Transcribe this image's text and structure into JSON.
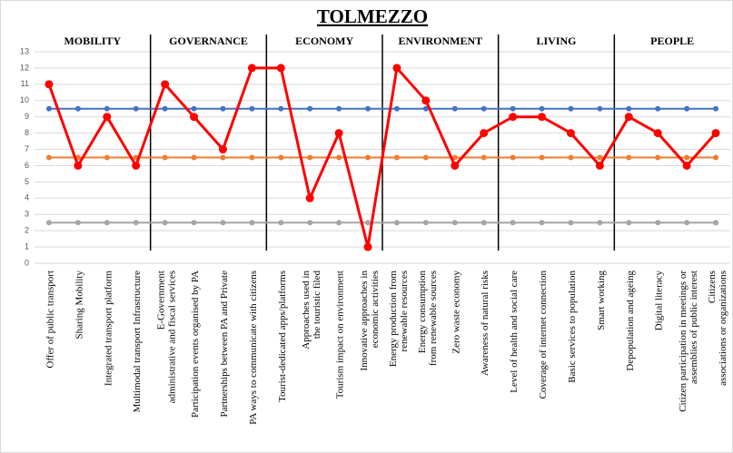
{
  "chart_data": {
    "type": "line",
    "title": "TOLMEZZO",
    "categories": [
      "Offer of public transport",
      "Sharing Mobility",
      "Integrated transport platform",
      "Multimodal transport Infrastructure",
      "E-Government administrative and fiscal services",
      "Participation events organised by PA",
      "Partnerships between PA and Private",
      "PA ways to communicate with citizens",
      "Tourist-dedicated apps/platforms",
      "Approaches used in the touristic filed",
      "Tourism impact on environment",
      "Innovative approaches in economic activities",
      "Energy production from renewable resources",
      "Energy consumption from renewable sources",
      "Zero waste economy",
      "Awareness of natural risks",
      "Level of health and social care",
      "Coverage of internet connection",
      "Basic services to population",
      "Smart working",
      "Depopulation and ageing",
      "Digital literacy",
      "Citizen participation in meetings or assemblies of public interest",
      "Citizens associations or organizations"
    ],
    "groups": [
      {
        "label": "MOBILITY",
        "categories": 4
      },
      {
        "label": "GOVERNANCE",
        "categories": 4
      },
      {
        "label": "ECONOMY",
        "categories": 4
      },
      {
        "label": "ENVIRONMENT",
        "categories": 4
      },
      {
        "label": "LIVING",
        "categories": 4
      },
      {
        "label": "PEOPLE",
        "categories": 4
      }
    ],
    "series": [
      {
        "color": "#4472c4",
        "values": [
          9.5,
          9.5,
          9.5,
          9.5,
          9.5,
          9.5,
          9.5,
          9.5,
          9.5,
          9.5,
          9.5,
          9.5,
          9.5,
          9.5,
          9.5,
          9.5,
          9.5,
          9.5,
          9.5,
          9.5,
          9.5,
          9.5,
          9.5,
          9.5
        ]
      },
      {
        "color": "#ed7d31",
        "values": [
          6.5,
          6.5,
          6.5,
          6.5,
          6.5,
          6.5,
          6.5,
          6.5,
          6.5,
          6.5,
          6.5,
          6.5,
          6.5,
          6.5,
          6.5,
          6.5,
          6.5,
          6.5,
          6.5,
          6.5,
          6.5,
          6.5,
          6.5,
          6.5
        ]
      },
      {
        "color": "#a5a5a5",
        "values": [
          2.5,
          2.5,
          2.5,
          2.5,
          2.5,
          2.5,
          2.5,
          2.5,
          2.5,
          2.5,
          2.5,
          2.5,
          2.5,
          2.5,
          2.5,
          2.5,
          2.5,
          2.5,
          2.5,
          2.5,
          2.5,
          2.5,
          2.5,
          2.5
        ]
      },
      {
        "color": "#ff0000",
        "values": [
          11,
          6,
          9,
          6,
          11,
          9,
          7,
          12,
          12,
          4,
          8,
          1,
          12,
          10,
          6,
          8,
          9,
          9,
          8,
          6,
          9,
          8,
          6,
          8
        ]
      }
    ],
    "ylim": [
      0,
      13
    ],
    "yticks": [
      0,
      1,
      2,
      3,
      4,
      5,
      6,
      7,
      8,
      9,
      10,
      11,
      12,
      13
    ],
    "grid": true
  }
}
